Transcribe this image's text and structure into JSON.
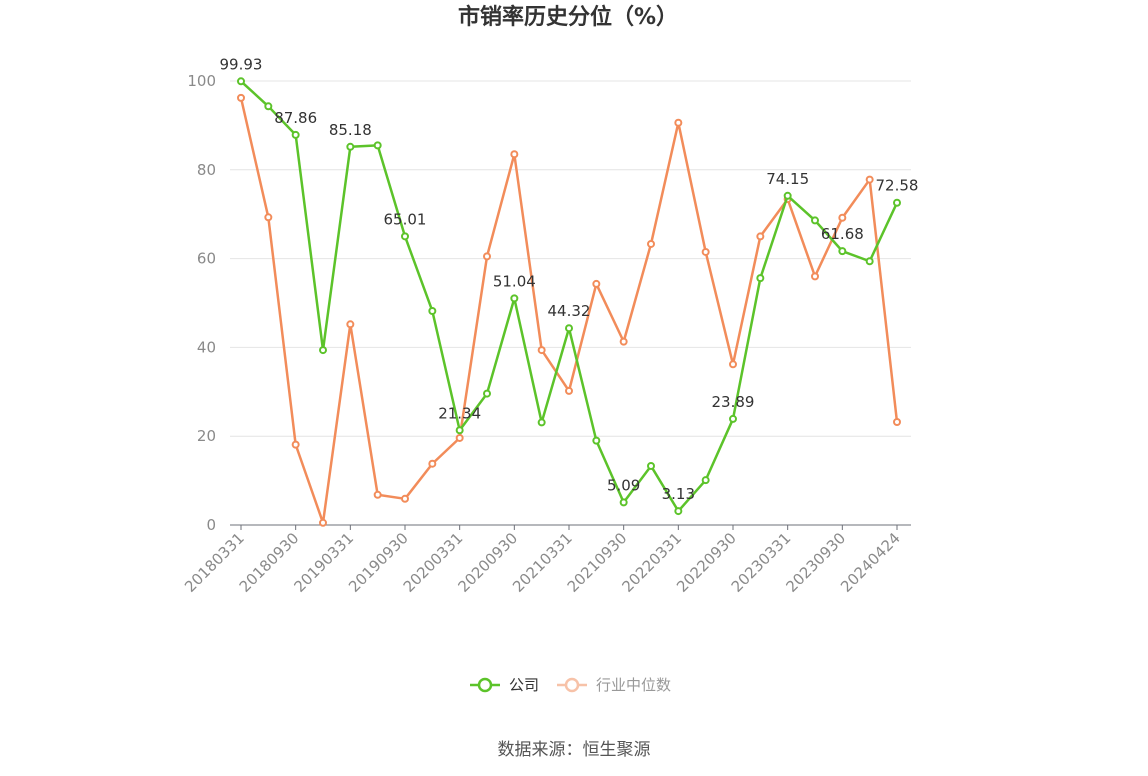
{
  "chart_data": {
    "type": "line",
    "title": "市销率历史分位（%）",
    "source": "数据来源：恒生聚源",
    "ylim": [
      0,
      100
    ],
    "yticks": [
      0,
      20,
      40,
      60,
      80,
      100
    ],
    "x_tick_labels": [
      "20180331",
      "20180930",
      "20190331",
      "20190930",
      "20200331",
      "20200930",
      "20210331",
      "20210930",
      "20220331",
      "20220930",
      "20230331",
      "20230930",
      "20240424"
    ],
    "legend_position": "bottom-center",
    "grid": true,
    "series": [
      {
        "name": "公司",
        "color": "#5cc32a",
        "values": [
          99.93,
          94.3,
          87.86,
          39.4,
          85.18,
          85.5,
          65.01,
          48.2,
          21.34,
          29.6,
          51.04,
          23.1,
          44.32,
          19.0,
          5.09,
          13.3,
          3.13,
          10.1,
          23.89,
          55.6,
          74.15,
          68.6,
          61.68,
          59.4,
          72.58
        ],
        "labels": {
          "0": "99.93",
          "2": "87.86",
          "4": "85.18",
          "6": "65.01",
          "8": "21.34",
          "10": "51.04",
          "12": "44.32",
          "14": "5.09",
          "16": "3.13",
          "18": "23.89",
          "20": "74.15",
          "22": "61.68",
          "24": "72.58"
        }
      },
      {
        "name": "行业中位数",
        "color": "#f28c5a",
        "values": [
          96.2,
          69.3,
          18.1,
          0.5,
          45.2,
          6.8,
          5.9,
          13.8,
          19.6,
          60.5,
          83.5,
          39.4,
          30.2,
          54.3,
          41.3,
          63.3,
          90.6,
          61.5,
          36.2,
          65.0,
          73.4,
          56.0,
          69.2,
          77.8,
          23.2
        ]
      }
    ]
  }
}
